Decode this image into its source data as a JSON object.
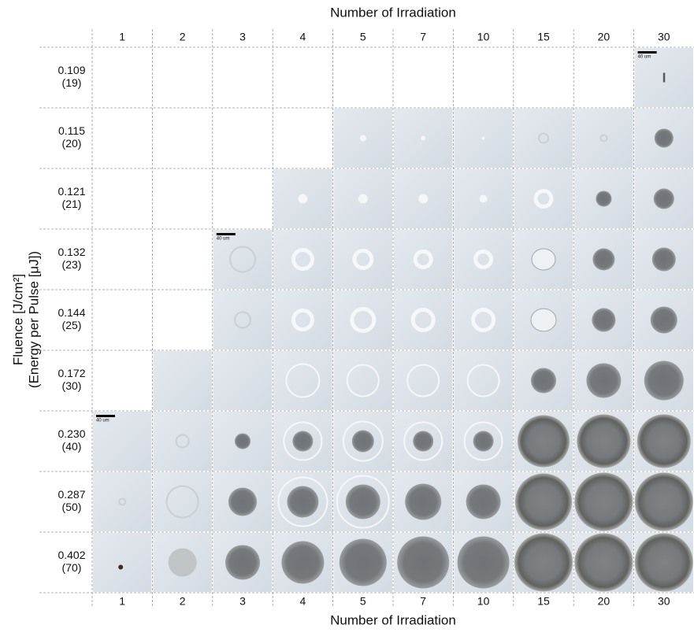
{
  "title_top": "Number of Irradiation",
  "title_bottom": "Number of Irradiation",
  "y_title": {
    "line1": "Fluence [J/cm²]",
    "line2": "(Energy per Pulse [μJ])"
  },
  "columns": [
    "1",
    "2",
    "3",
    "4",
    "5",
    "7",
    "10",
    "15",
    "20",
    "30"
  ],
  "rows": [
    {
      "fluence": "0.109",
      "energy": "(19)"
    },
    {
      "fluence": "0.115",
      "energy": "(20)"
    },
    {
      "fluence": "0.121",
      "energy": "(21)"
    },
    {
      "fluence": "0.132",
      "energy": "(23)"
    },
    {
      "fluence": "0.144",
      "energy": "(25)"
    },
    {
      "fluence": "0.172",
      "energy": "(30)"
    },
    {
      "fluence": "0.230",
      "energy": "(40)"
    },
    {
      "fluence": "0.287",
      "energy": "(50)"
    },
    {
      "fluence": "0.402",
      "energy": "(70)"
    }
  ],
  "scale_bar_label": "40 um"
}
